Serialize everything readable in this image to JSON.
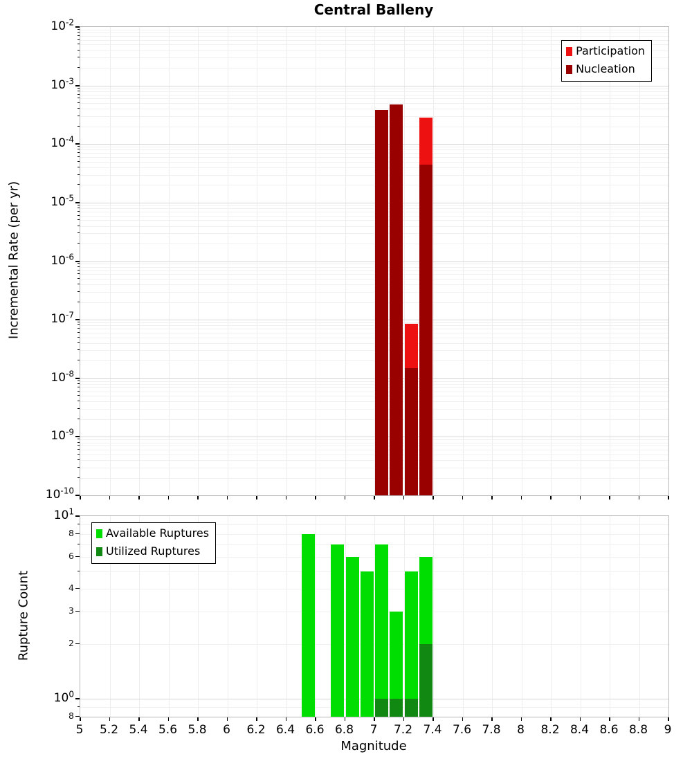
{
  "chart_data": [
    {
      "type": "bar",
      "id": "incremental-rate",
      "title": "Central Balleny",
      "ylabel": "Incremental Rate (per yr)",
      "xlabel": "",
      "y_scale": "log",
      "ylim": [
        1e-10,
        0.01
      ],
      "xlim": [
        5,
        9
      ],
      "x_grid_step": 0.2,
      "bin_width": 0.1,
      "grid": true,
      "legend_position": "top-right",
      "y_ticks": [
        {
          "label": "10^-2",
          "value": 0.01
        },
        {
          "label": "10^-3",
          "value": 0.001
        },
        {
          "label": "10^-4",
          "value": 0.0001
        },
        {
          "label": "10^-5",
          "value": 1e-05
        },
        {
          "label": "10^-6",
          "value": 1e-06
        },
        {
          "label": "10^-7",
          "value": 1e-07
        },
        {
          "label": "10^-8",
          "value": 1e-08
        },
        {
          "label": "10^-9",
          "value": 1e-09
        },
        {
          "label": "10^-10",
          "value": 1e-10
        }
      ],
      "series": [
        {
          "name": "Participation",
          "color": "#ee1111",
          "x": [
            7.0,
            7.1,
            7.2,
            7.3
          ],
          "values": [
            0.00038,
            0.00047,
            8.5e-08,
            0.00028
          ]
        },
        {
          "name": "Nucleation",
          "color": "#990000",
          "x": [
            7.0,
            7.1,
            7.2,
            7.3
          ],
          "values": [
            0.00038,
            0.00047,
            1.5e-08,
            4.5e-05
          ]
        }
      ]
    },
    {
      "type": "bar",
      "id": "rupture-count",
      "title": "",
      "ylabel": "Rupture Count",
      "xlabel": "Magnitude",
      "y_scale": "log",
      "ylim": [
        0.8,
        10
      ],
      "xlim": [
        5,
        9
      ],
      "x_grid_step": 0.2,
      "bin_width": 0.1,
      "grid": true,
      "legend_position": "top-left",
      "y_ticks": [
        {
          "label": "10^1",
          "value": 10
        },
        {
          "label": "8",
          "value": 8,
          "minor": true
        },
        {
          "label": "6",
          "value": 6,
          "minor": true
        },
        {
          "label": "4",
          "value": 4,
          "minor": true
        },
        {
          "label": "3",
          "value": 3,
          "minor": true
        },
        {
          "label": "2",
          "value": 2,
          "minor": true
        },
        {
          "label": "10^0",
          "value": 1
        },
        {
          "label": "8",
          "value": 0.8,
          "minor": true
        }
      ],
      "x_ticks": [
        {
          "label": "5",
          "value": 5
        },
        {
          "label": "5.2",
          "value": 5.2
        },
        {
          "label": "5.4",
          "value": 5.4
        },
        {
          "label": "5.6",
          "value": 5.6
        },
        {
          "label": "5.8",
          "value": 5.8
        },
        {
          "label": "6",
          "value": 6
        },
        {
          "label": "6.2",
          "value": 6.2
        },
        {
          "label": "6.4",
          "value": 6.4
        },
        {
          "label": "6.6",
          "value": 6.6
        },
        {
          "label": "6.8",
          "value": 6.8
        },
        {
          "label": "7",
          "value": 7
        },
        {
          "label": "7.2",
          "value": 7.2
        },
        {
          "label": "7.4",
          "value": 7.4
        },
        {
          "label": "7.6",
          "value": 7.6
        },
        {
          "label": "7.8",
          "value": 7.8
        },
        {
          "label": "8",
          "value": 8
        },
        {
          "label": "8.2",
          "value": 8.2
        },
        {
          "label": "8.4",
          "value": 8.4
        },
        {
          "label": "8.6",
          "value": 8.6
        },
        {
          "label": "8.8",
          "value": 8.8
        },
        {
          "label": "9",
          "value": 9
        }
      ],
      "series": [
        {
          "name": "Available Ruptures",
          "color": "#00dd00",
          "x": [
            6.5,
            6.7,
            6.8,
            6.9,
            7.0,
            7.1,
            7.2,
            7.3
          ],
          "values": [
            8,
            7,
            6,
            5,
            7,
            3,
            5,
            6
          ]
        },
        {
          "name": "Utilized Ruptures",
          "color": "#118811",
          "x": [
            7.0,
            7.1,
            7.2,
            7.3
          ],
          "values": [
            1,
            1,
            1,
            2
          ]
        }
      ]
    }
  ]
}
